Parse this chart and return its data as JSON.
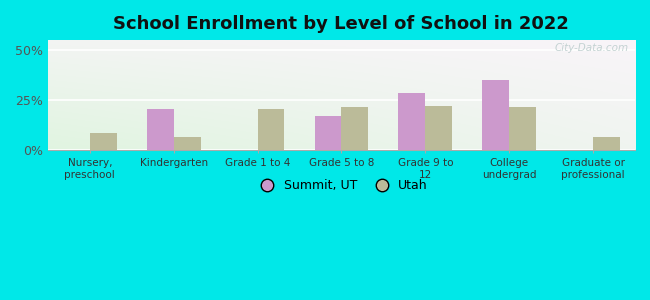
{
  "title": "School Enrollment by Level of School in 2022",
  "categories": [
    "Nursery,\npreschool",
    "Kindergarten",
    "Grade 1 to 4",
    "Grade 5 to 8",
    "Grade 9 to\n12",
    "College\nundergrad",
    "Graduate or\nprofessional"
  ],
  "summit_values": [
    0.0,
    20.5,
    0.0,
    17.0,
    28.5,
    35.0,
    0.0
  ],
  "utah_values": [
    8.5,
    6.5,
    20.5,
    21.5,
    22.0,
    21.5,
    6.5
  ],
  "summit_color": "#cc99cc",
  "utah_color": "#bbbb99",
  "background_outer": "#00e8e8",
  "ylim": [
    0,
    55
  ],
  "yticks": [
    0,
    25,
    50
  ],
  "ytick_labels": [
    "0%",
    "25%",
    "50%"
  ],
  "title_fontsize": 13,
  "legend_labels": [
    "Summit, UT",
    "Utah"
  ],
  "watermark": "City-Data.com",
  "bar_width": 0.32
}
